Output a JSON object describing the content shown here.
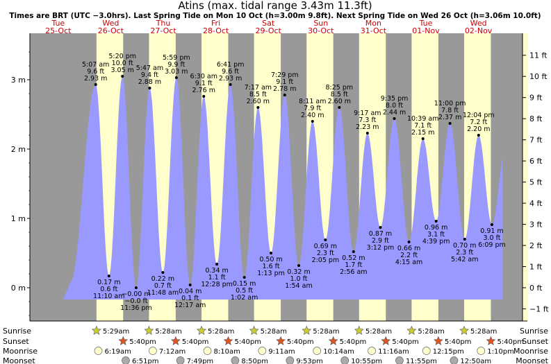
{
  "chart_data": {
    "type": "area",
    "title": "Atins (max. tidal range 3.43m 11.3ft)",
    "subtitle": "Times are BRT (UTC −3.0hrs). Last Spring Tide on Mon 10 Oct (h=3.00m 9.8ft). Next Spring Tide on Wed 26 Oct (h=3.06m 10.0ft)",
    "ylabel_left_unit": "m",
    "ylabel_right_unit": "ft",
    "ylim_m": [
      -0.6,
      3.65
    ],
    "xlim_hours": [
      0,
      216
    ],
    "left_ticks": [
      {
        "value": 0,
        "label": "0 m"
      },
      {
        "value": 1,
        "label": "1 m"
      },
      {
        "value": 2,
        "label": "2 m"
      },
      {
        "value": 3,
        "label": "3 m"
      }
    ],
    "right_ticks": [
      {
        "value": -1,
        "label": "−1 ft"
      },
      {
        "value": 0,
        "label": "0 ft"
      },
      {
        "value": 1,
        "label": "1 ft"
      },
      {
        "value": 2,
        "label": "2 ft"
      },
      {
        "value": 3,
        "label": "3 ft"
      },
      {
        "value": 4,
        "label": "4 ft"
      },
      {
        "value": 5,
        "label": "5 ft"
      },
      {
        "value": 6,
        "label": "6 ft"
      },
      {
        "value": 7,
        "label": "7 ft"
      },
      {
        "value": 8,
        "label": "8 ft"
      },
      {
        "value": 9,
        "label": "9 ft"
      },
      {
        "value": 10,
        "label": "10 ft"
      },
      {
        "value": 11,
        "label": "11 ft"
      }
    ],
    "days": [
      {
        "day": "Tue",
        "date": "25-Oct",
        "start_h": 0
      },
      {
        "day": "Wed",
        "date": "26-Oct",
        "start_h": 24
      },
      {
        "day": "Thu",
        "date": "27-Oct",
        "start_h": 48
      },
      {
        "day": "Fri",
        "date": "28-Oct",
        "start_h": 72
      },
      {
        "day": "Sat",
        "date": "29-Oct",
        "start_h": 96
      },
      {
        "day": "Sun",
        "date": "30-Oct",
        "start_h": 120
      },
      {
        "day": "Mon",
        "date": "31-Oct",
        "start_h": 144
      },
      {
        "day": "Tue",
        "date": "01-Nov",
        "start_h": 168
      },
      {
        "day": "Wed",
        "date": "02-Nov",
        "start_h": 192
      }
    ],
    "daylight": [
      {
        "start": 29.48,
        "end": 41.67
      },
      {
        "start": 53.47,
        "end": 65.67
      },
      {
        "start": 77.47,
        "end": 89.67
      },
      {
        "start": 101.47,
        "end": 113.67
      },
      {
        "start": 125.47,
        "end": 137.67
      },
      {
        "start": 149.47,
        "end": 161.67
      },
      {
        "start": 173.47,
        "end": 185.67
      },
      {
        "start": 197.47,
        "end": 209.67
      }
    ],
    "tides": [
      {
        "t": 17.6,
        "h": 0.08,
        "type": "low",
        "label": ""
      },
      {
        "t": 29.12,
        "h": 2.93,
        "type": "high",
        "time": "5:07 am",
        "ft": "9.6 ft",
        "m": "2.93 m"
      },
      {
        "t": 35.17,
        "h": 0.17,
        "type": "low",
        "time": "11:10 am",
        "ft": "0.6 ft",
        "m": "0.17 m"
      },
      {
        "t": 41.33,
        "h": 3.05,
        "type": "high",
        "time": "5:20 pm",
        "ft": "10.0 ft",
        "m": "3.05 m"
      },
      {
        "t": 47.6,
        "h": -0.0,
        "type": "low",
        "time": "11:36 pm",
        "ft": "−0.0 ft",
        "m": "−0.00 m"
      },
      {
        "t": 53.78,
        "h": 2.88,
        "type": "high",
        "time": "5:47 am",
        "ft": "9.4 ft",
        "m": "2.88 m"
      },
      {
        "t": 59.8,
        "h": 0.22,
        "type": "low",
        "time": "11:48 am",
        "ft": "0.7 ft",
        "m": "0.22 m"
      },
      {
        "t": 65.98,
        "h": 3.03,
        "type": "high",
        "time": "5:59 pm",
        "ft": "9.9 ft",
        "m": "3.03 m"
      },
      {
        "t": 72.28,
        "h": 0.04,
        "type": "low",
        "time": "12:17 am",
        "ft": "0.1 ft",
        "m": "0.04 m"
      },
      {
        "t": 78.5,
        "h": 2.76,
        "type": "high",
        "time": "6:30 am",
        "ft": "9.1 ft",
        "m": "2.76 m"
      },
      {
        "t": 84.47,
        "h": 0.34,
        "type": "low",
        "time": "12:28 pm",
        "ft": "1.1 ft",
        "m": "0.34 m"
      },
      {
        "t": 90.68,
        "h": 2.93,
        "type": "high",
        "time": "6:41 pm",
        "ft": "9.6 ft",
        "m": "2.93 m"
      },
      {
        "t": 97.03,
        "h": 0.15,
        "type": "low",
        "time": "1:02 am",
        "ft": "0.5 ft",
        "m": "0.15 m"
      },
      {
        "t": 103.28,
        "h": 2.6,
        "type": "high",
        "time": "7:17 am",
        "ft": "8.5 ft",
        "m": "2.60 m"
      },
      {
        "t": 109.22,
        "h": 0.5,
        "type": "low",
        "time": "1:13 pm",
        "ft": "1.6 ft",
        "m": "0.50 m"
      },
      {
        "t": 115.48,
        "h": 2.78,
        "type": "high",
        "time": "7:29 pm",
        "ft": "9.1 ft",
        "m": "2.78 m"
      },
      {
        "t": 121.9,
        "h": 0.32,
        "type": "low",
        "time": "1:54 am",
        "ft": "1.0 ft",
        "m": "0.32 m"
      },
      {
        "t": 128.18,
        "h": 2.4,
        "type": "high",
        "time": "8:11 am",
        "ft": "7.9 ft",
        "m": "2.40 m"
      },
      {
        "t": 134.08,
        "h": 0.69,
        "type": "low",
        "time": "2:05 pm",
        "ft": "2.3 ft",
        "m": "0.69 m"
      },
      {
        "t": 140.42,
        "h": 2.6,
        "type": "high",
        "time": "8:25 pm",
        "ft": "8.5 ft",
        "m": "2.60 m"
      },
      {
        "t": 146.93,
        "h": 0.52,
        "type": "low",
        "time": "2:56 am",
        "ft": "1.7 ft",
        "m": "0.52 m"
      },
      {
        "t": 153.28,
        "h": 2.23,
        "type": "high",
        "time": "9:17 am",
        "ft": "7.3 ft",
        "m": "2.23 m"
      },
      {
        "t": 159.2,
        "h": 0.87,
        "type": "low",
        "time": "3:12 pm",
        "ft": "2.9 ft",
        "m": "0.87 m"
      },
      {
        "t": 165.58,
        "h": 2.44,
        "type": "high",
        "time": "9:35 pm",
        "ft": "8.0 ft",
        "m": "2.44 m"
      },
      {
        "t": 172.25,
        "h": 0.66,
        "type": "low",
        "time": "4:15 am",
        "ft": "2.2 ft",
        "m": "0.66 m"
      },
      {
        "t": 178.65,
        "h": 2.15,
        "type": "high",
        "time": "10:39 am",
        "ft": "7.1 ft",
        "m": "2.15 m"
      },
      {
        "t": 184.65,
        "h": 0.96,
        "type": "low",
        "time": "4:39 pm",
        "ft": "3.1 ft",
        "m": "0.96 m"
      },
      {
        "t": 191.0,
        "h": 2.37,
        "type": "high",
        "time": "11:00 pm",
        "ft": "7.8 ft",
        "m": "2.37 m"
      },
      {
        "t": 197.7,
        "h": 0.7,
        "type": "low",
        "time": "5:42 am",
        "ft": "2.3 ft",
        "m": "0.70 m"
      },
      {
        "t": 204.07,
        "h": 2.2,
        "type": "high",
        "time": "12:04 pm",
        "ft": "7.2 ft",
        "m": "2.20 m"
      },
      {
        "t": 210.15,
        "h": 0.91,
        "type": "low",
        "time": "6:09 pm",
        "ft": "3.0 ft",
        "m": "0.91 m"
      },
      {
        "t": 216.6,
        "h": 2.05,
        "type": "high",
        "label": ""
      }
    ],
    "bottom_rows": {
      "labels": {
        "sunrise": "Sunrise",
        "sunset": "Sunset",
        "moonrise": "Moonrise",
        "moonset": "Moonset"
      },
      "sunrise": [
        {
          "t": 29.48,
          "text": "5:29am"
        },
        {
          "t": 53.47,
          "text": "5:28am"
        },
        {
          "t": 77.47,
          "text": "5:28am"
        },
        {
          "t": 101.47,
          "text": "5:28am"
        },
        {
          "t": 125.47,
          "text": "5:28am"
        },
        {
          "t": 149.47,
          "text": "5:28am"
        },
        {
          "t": 173.47,
          "text": "5:28am"
        },
        {
          "t": 197.47,
          "text": "5:28am"
        }
      ],
      "sunset": [
        {
          "t": 41.67,
          "text": "5:40pm"
        },
        {
          "t": 65.67,
          "text": "5:40pm"
        },
        {
          "t": 89.67,
          "text": "5:40pm"
        },
        {
          "t": 113.67,
          "text": "5:40pm"
        },
        {
          "t": 137.67,
          "text": "5:40pm"
        },
        {
          "t": 161.67,
          "text": "5:40pm"
        },
        {
          "t": 185.67,
          "text": "5:40pm"
        },
        {
          "t": 209.67,
          "text": "5:40pm"
        }
      ],
      "moonrise": [
        {
          "t": 30.32,
          "text": "6:19am"
        },
        {
          "t": 55.2,
          "text": "7:12am"
        },
        {
          "t": 80.17,
          "text": "8:10am"
        },
        {
          "t": 105.18,
          "text": "9:11am"
        },
        {
          "t": 130.23,
          "text": "10:14am"
        },
        {
          "t": 155.27,
          "text": "11:16am"
        },
        {
          "t": 180.25,
          "text": "12:15pm"
        },
        {
          "t": 205.17,
          "text": "1:10pm"
        }
      ],
      "moonset": [
        {
          "t": 42.85,
          "text": "6:51pm"
        },
        {
          "t": 67.82,
          "text": "7:49pm"
        },
        {
          "t": 92.83,
          "text": "8:50pm"
        },
        {
          "t": 117.88,
          "text": "9:53pm"
        },
        {
          "t": 142.92,
          "text": "10:55pm"
        },
        {
          "t": 167.92,
          "text": "11:55pm"
        },
        {
          "t": 192.83,
          "text": "12:50am"
        }
      ]
    },
    "colors": {
      "night": "#999999",
      "day": "#ffffcc",
      "water": "#9999ff",
      "axis_bg": "#ffffcc",
      "day_header": "#cc0000",
      "text": "#000000",
      "sun_rise": "#cccc33",
      "sun_set": "#dd5522",
      "moon_rise": "#ffffcc",
      "moon_set": "#aaaaaa"
    }
  }
}
